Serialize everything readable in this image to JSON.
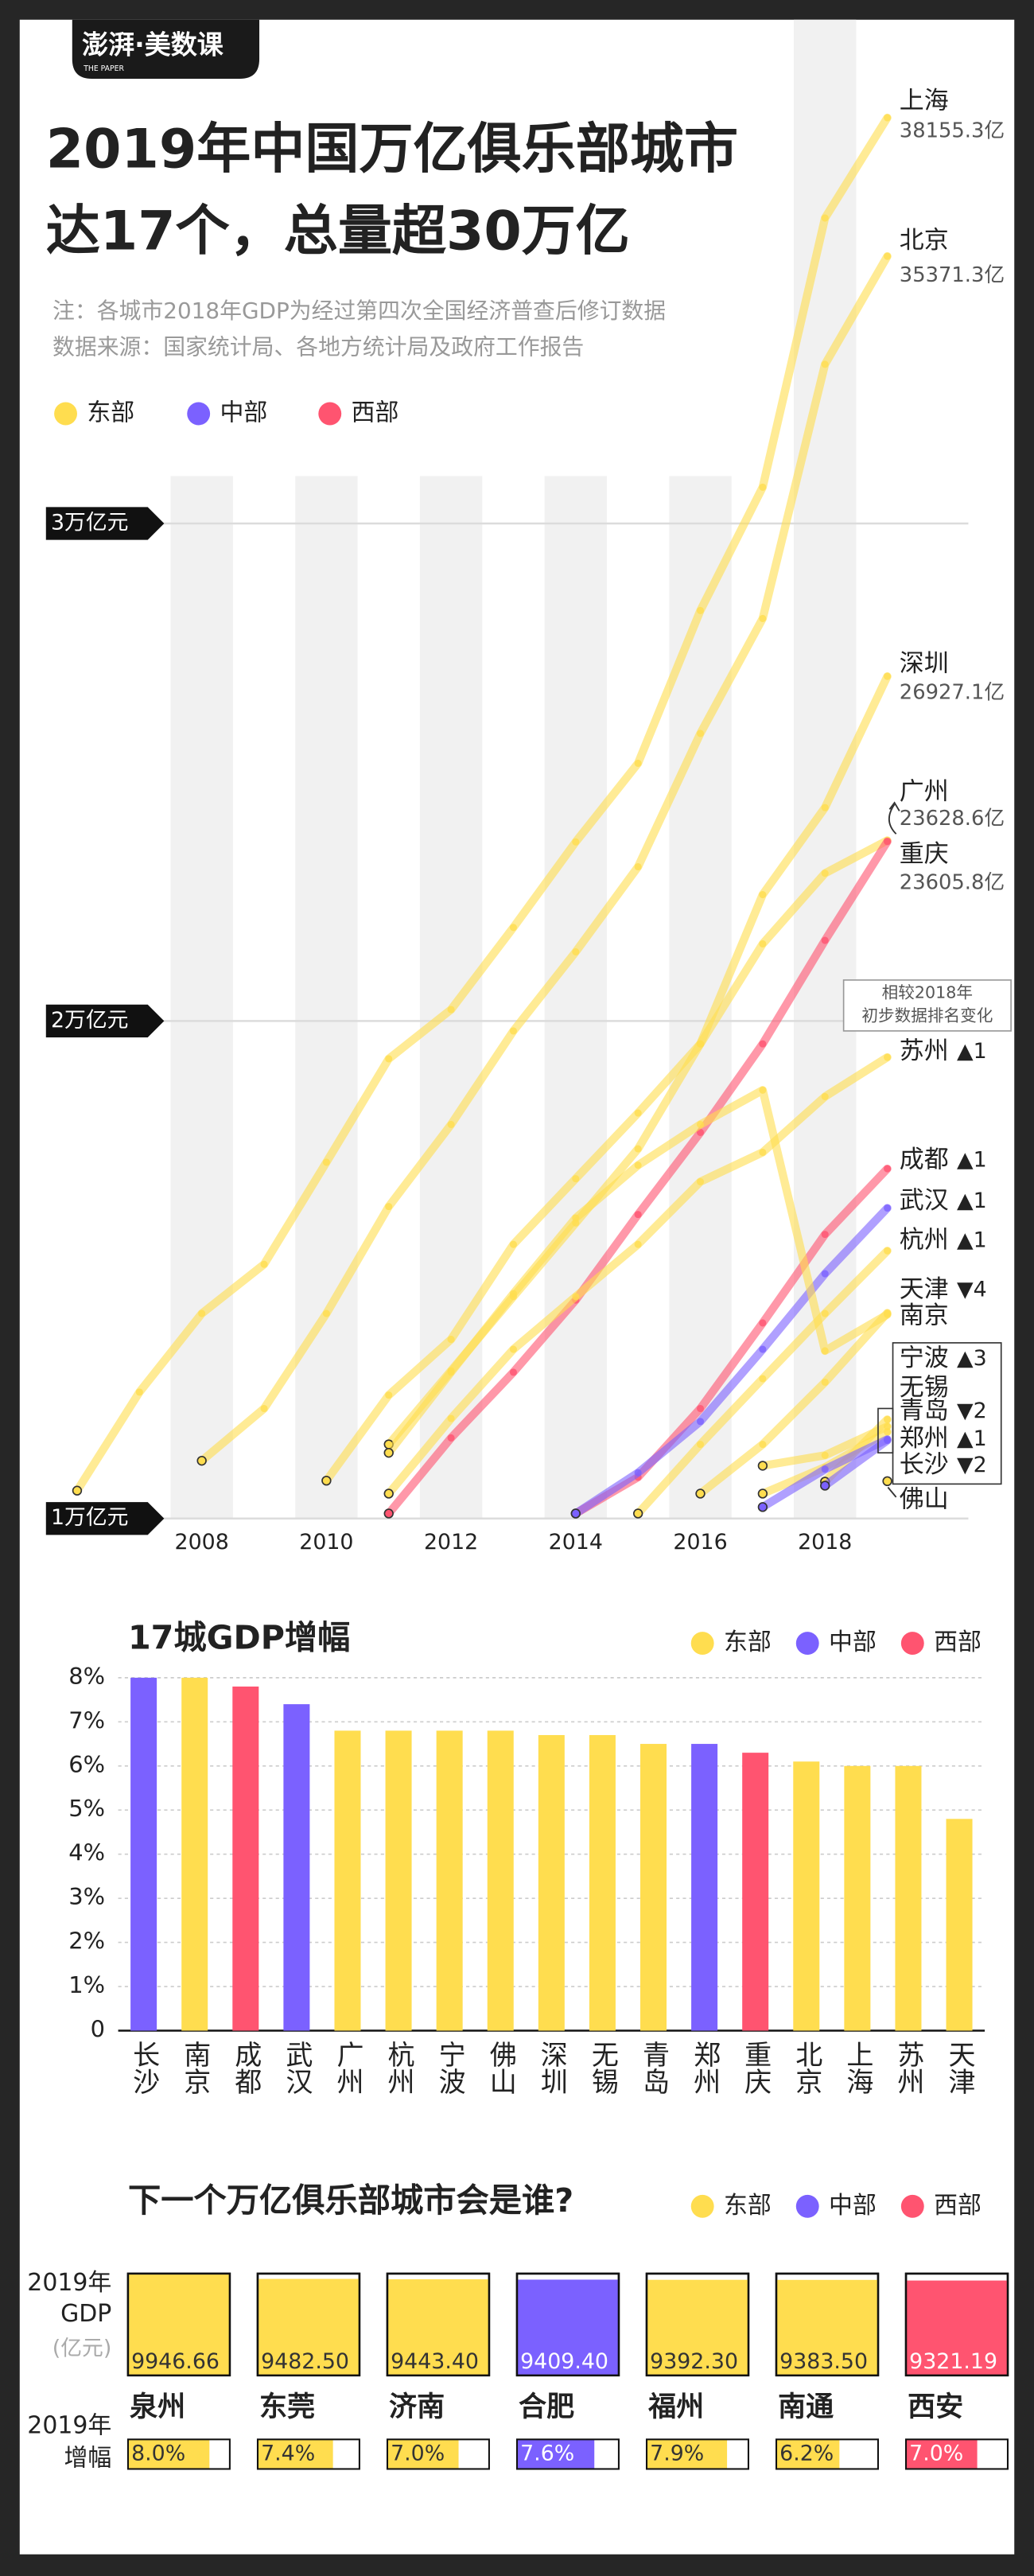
{
  "header": {
    "brand": "澎湃·美数课",
    "brand_sub": "THE PAPER"
  },
  "chart_data": [
    {
      "type": "line",
      "title": [
        "2019年中国万亿俱乐部城市",
        "达17个，总量超30万亿"
      ],
      "notes": [
        "注：各城市2018年GDP为经过第四次全国经济普查后修订数据",
        "数据来源：国家统计局、各地方统计局及政府工作报告"
      ],
      "legend": [
        {
          "name": "东部",
          "color": "#ffdd4f"
        },
        {
          "name": "中部",
          "color": "#7b61ff"
        },
        {
          "name": "西部",
          "color": "#ff5470"
        }
      ],
      "annotation": [
        "相较2018年",
        "初步数据排名变化"
      ],
      "xlim": [
        2005.5,
        2020.3
      ],
      "xticks": [
        2008,
        2010,
        2012,
        2014,
        2016,
        2018
      ],
      "ylim": [
        10000,
        39500
      ],
      "yticks": [
        {
          "value": 10000,
          "label": "1万亿元"
        },
        {
          "value": 20000,
          "label": "2万亿元"
        },
        {
          "value": 30000,
          "label": "3万亿元"
        }
      ],
      "series": [
        {
          "name": "上海",
          "color": "#ffdd4f",
          "x": [
            2006,
            2007,
            2008,
            2009,
            2010,
            2011,
            2012,
            2013,
            2014,
            2015,
            2016,
            2017,
            2018,
            2019
          ],
          "values": [
            10560,
            12540,
            14120,
            15110,
            17160,
            19240,
            20230,
            21880,
            23600,
            25180,
            28250,
            30730,
            36140,
            38155.3
          ],
          "value_labels": [
            null,
            null,
            null,
            null,
            null,
            null,
            null,
            null,
            null,
            null,
            null,
            null,
            null,
            "38155.3亿"
          ]
        },
        {
          "name": "北京",
          "color": "#ffdd4f",
          "x": [
            2008,
            2009,
            2010,
            2011,
            2012,
            2013,
            2014,
            2015,
            2016,
            2017,
            2018,
            2019
          ],
          "values": [
            11160,
            12210,
            14120,
            16270,
            17920,
            19800,
            21390,
            23100,
            25780,
            28090,
            33200,
            35371.3
          ],
          "value_labels": [
            null,
            null,
            null,
            null,
            null,
            null,
            null,
            null,
            null,
            null,
            null,
            "35371.3亿"
          ]
        },
        {
          "name": "深圳",
          "color": "#ffdd4f",
          "x": [
            2011,
            2012,
            2013,
            2014,
            2015,
            2016,
            2017,
            2018,
            2019
          ],
          "values": [
            11490,
            12970,
            14460,
            15940,
            17430,
            19540,
            22540,
            24290,
            26927.1
          ],
          "value_labels": [
            null,
            null,
            null,
            null,
            null,
            null,
            null,
            null,
            "26927.1亿"
          ]
        },
        {
          "name": "广州",
          "color": "#ffdd4f",
          "x": [
            2010,
            2011,
            2012,
            2013,
            2014,
            2015,
            2016,
            2017,
            2018,
            2019
          ],
          "values": [
            10760,
            12480,
            13600,
            15510,
            16830,
            18150,
            19540,
            21550,
            22970,
            23628.6
          ],
          "value_labels": [
            null,
            null,
            null,
            null,
            null,
            null,
            null,
            null,
            null,
            "23628.6亿"
          ]
        },
        {
          "name": "重庆",
          "color": "#ff5470",
          "x": [
            2011,
            2012,
            2013,
            2014,
            2015,
            2016,
            2017,
            2018,
            2019
          ],
          "values": [
            10100,
            11620,
            12940,
            14390,
            16110,
            17760,
            19540,
            21620,
            23605.8
          ],
          "value_labels": [
            null,
            null,
            null,
            null,
            null,
            null,
            null,
            null,
            "23605.8亿"
          ]
        },
        {
          "name": "苏州",
          "rank_change": "▲1",
          "color": "#ffdd4f",
          "x": [
            2011,
            2012,
            2013,
            2014,
            2015,
            2016,
            2017,
            2018,
            2019
          ],
          "values": [
            10500,
            12010,
            13400,
            14460,
            15510,
            16770,
            17360,
            18480,
            19270
          ]
        },
        {
          "name": "成都",
          "rank_change": "▲1",
          "color": "#ff5470",
          "x": [
            2014,
            2015,
            2016,
            2017,
            2018,
            2019
          ],
          "values": [
            10100,
            10830,
            12210,
            13930,
            15710,
            17030
          ]
        },
        {
          "name": "武汉",
          "rank_change": "▲1",
          "color": "#7b61ff",
          "x": [
            2014,
            2015,
            2016,
            2017,
            2018,
            2019
          ],
          "values": [
            10100,
            10920,
            11950,
            13400,
            14920,
            16240
          ]
        },
        {
          "name": "杭州",
          "rank_change": "▲1",
          "color": "#ffdd4f",
          "x": [
            2015,
            2016,
            2017,
            2018,
            2019
          ],
          "values": [
            10100,
            11490,
            12810,
            14120,
            15380
          ]
        },
        {
          "name": "天津",
          "rank_change": "▼4",
          "color": "#ffdd4f",
          "x": [
            2011,
            2012,
            2013,
            2014,
            2015,
            2016,
            2017,
            2018,
            2019
          ],
          "values": [
            11320,
            12940,
            14520,
            16040,
            17100,
            17920,
            18610,
            13370,
            14100
          ]
        },
        {
          "name": "南京",
          "color": "#ffdd4f",
          "x": [
            2016,
            2017,
            2018,
            2019
          ],
          "values": [
            10500,
            11490,
            12740,
            14130
          ]
        },
        {
          "name": "宁波",
          "rank_change": "▲3",
          "color": "#ffdd4f",
          "x": [
            2018,
            2019
          ],
          "values": [
            10740,
            11990
          ]
        },
        {
          "name": "无锡",
          "color": "#ffdd4f",
          "x": [
            2017,
            2018,
            2019
          ],
          "values": [
            11060,
            11270,
            11850
          ]
        },
        {
          "name": "青岛",
          "rank_change": "▼2",
          "color": "#ffdd4f",
          "x": [
            2017,
            2018,
            2019
          ],
          "values": [
            10500,
            11030,
            11740
          ]
        },
        {
          "name": "郑州",
          "rank_change": "▲1",
          "color": "#7b61ff",
          "x": [
            2017,
            2018,
            2019
          ],
          "values": [
            10230,
            10990,
            11590
          ]
        },
        {
          "name": "长沙",
          "rank_change": "▼2",
          "color": "#7b61ff",
          "x": [
            2018,
            2019
          ],
          "values": [
            10660,
            11570
          ]
        },
        {
          "name": "佛山",
          "color": "#ffdd4f",
          "x": [
            2019
          ],
          "values": [
            10750
          ]
        }
      ]
    },
    {
      "type": "bar",
      "title": "17城GDP增幅",
      "legend": [
        {
          "name": "东部",
          "color": "#ffdd4f"
        },
        {
          "name": "中部",
          "color": "#7b61ff"
        },
        {
          "name": "西部",
          "color": "#ff5470"
        }
      ],
      "categories": [
        "长沙",
        "南京",
        "成都",
        "武汉",
        "广州",
        "杭州",
        "宁波",
        "佛山",
        "深圳",
        "无锡",
        "青岛",
        "郑州",
        "重庆",
        "北京",
        "上海",
        "苏州",
        "天津"
      ],
      "values": [
        8.0,
        8.0,
        7.8,
        7.4,
        6.8,
        6.8,
        6.8,
        6.8,
        6.7,
        6.7,
        6.5,
        6.5,
        6.3,
        6.1,
        6.0,
        6.0,
        4.8
      ],
      "colors": [
        "#7b61ff",
        "#ffdd4f",
        "#ff5470",
        "#7b61ff",
        "#ffdd4f",
        "#ffdd4f",
        "#ffdd4f",
        "#ffdd4f",
        "#ffdd4f",
        "#ffdd4f",
        "#ffdd4f",
        "#7b61ff",
        "#ff5470",
        "#ffdd4f",
        "#ffdd4f",
        "#ffdd4f",
        "#ffdd4f"
      ],
      "ylim": [
        0,
        8
      ],
      "yticks": [
        0,
        {
          "value": 1,
          "label": "1%"
        },
        {
          "value": 2,
          "label": "2%"
        },
        {
          "value": 3,
          "label": "3%"
        },
        {
          "value": 4,
          "label": "4%"
        },
        {
          "value": 5,
          "label": "5%"
        },
        {
          "value": 6,
          "label": "6%"
        },
        {
          "value": 7,
          "label": "7%"
        },
        {
          "value": 8,
          "label": "8%"
        }
      ],
      "grid": true
    },
    {
      "type": "tile",
      "title": "下一个万亿俱乐部城市会是谁?",
      "legend": [
        {
          "name": "东部",
          "color": "#ffdd4f"
        },
        {
          "name": "中部",
          "color": "#7b61ff"
        },
        {
          "name": "西部",
          "color": "#ff5470"
        }
      ],
      "gdp_label": [
        "2019年",
        "GDP"
      ],
      "unit_label": "(亿元)",
      "growth_label": [
        "2019年",
        "增幅"
      ],
      "categories": [
        "泉州",
        "东莞",
        "济南",
        "合肥",
        "福州",
        "南通",
        "西安"
      ],
      "values": [
        9946.66,
        9482.5,
        9443.4,
        9409.4,
        9392.3,
        9383.5,
        9321.19
      ],
      "value_labels": [
        "9946.66",
        "9482.50",
        "9443.40",
        "9409.40",
        "9392.30",
        "9383.50",
        "9321.19"
      ],
      "ylim": [
        0,
        10000
      ],
      "growth": [
        8.0,
        7.4,
        7.0,
        7.6,
        7.9,
        6.2,
        7.0
      ],
      "growth_labels": [
        "8.0%",
        "7.4%",
        "7.0%",
        "7.6%",
        "7.9%",
        "6.2%",
        "7.0%"
      ],
      "growth_xlim": [
        0,
        10
      ],
      "colors": [
        "#ffdd4f",
        "#ffdd4f",
        "#ffdd4f",
        "#7b61ff",
        "#ffdd4f",
        "#ffdd4f",
        "#ff5470"
      ]
    }
  ]
}
